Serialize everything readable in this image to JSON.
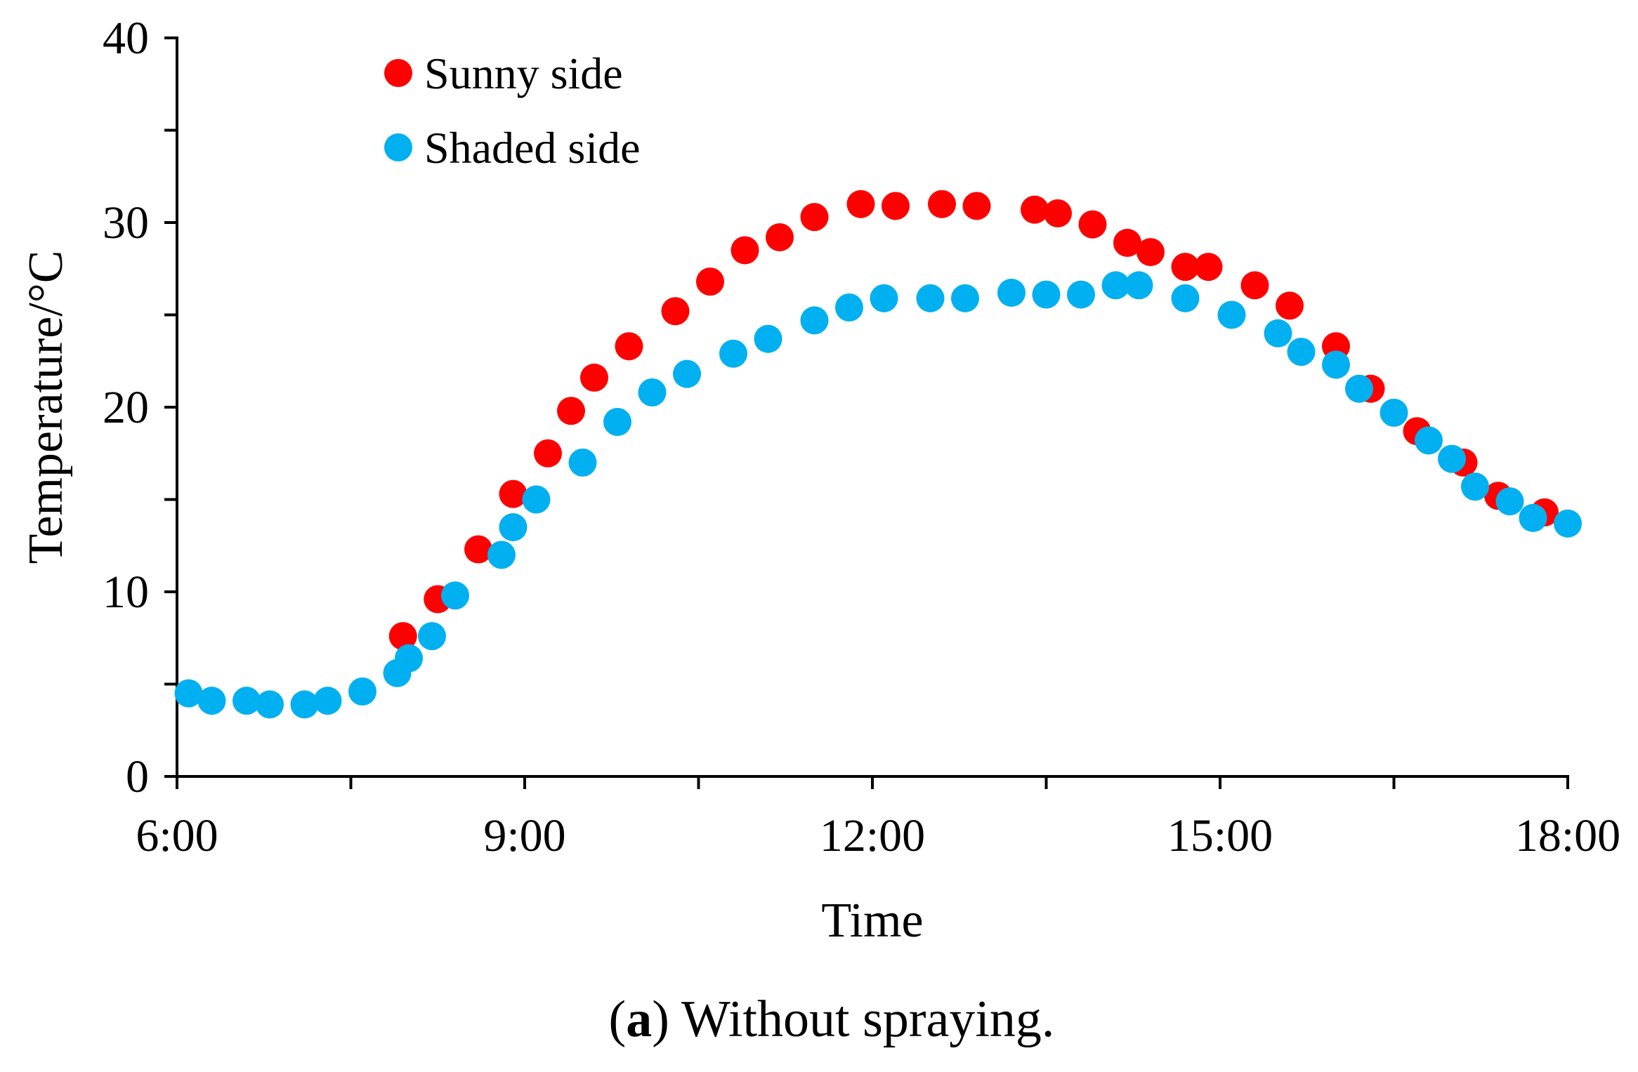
{
  "chart_data": {
    "type": "scatter",
    "title": "",
    "xlabel": "Time",
    "ylabel": "Temperature/°C",
    "caption": {
      "letter": "a",
      "open": "(",
      "close": ")",
      "text": " Without spraying."
    },
    "xlim": [
      6,
      18
    ],
    "ylim": [
      0,
      40
    ],
    "x_ticks": [
      6,
      9,
      12,
      15,
      18
    ],
    "x_tick_labels": [
      "6:00",
      "9:00",
      "12:00",
      "15:00",
      "18:00"
    ],
    "x_minor_ticks": [
      7.5,
      10.5,
      13.5,
      16.5
    ],
    "y_ticks": [
      0,
      10,
      20,
      30,
      40
    ],
    "y_tick_labels": [
      "0",
      "10",
      "20",
      "30",
      "40"
    ],
    "y_minor_ticks": [
      5,
      15,
      25,
      35
    ],
    "grid": false,
    "legend_position": "top-left",
    "series": [
      {
        "name": "Sunny side",
        "color": "#ff0000",
        "x": [
          7.95,
          8.25,
          8.6,
          8.9,
          9.2,
          9.4,
          9.6,
          9.9,
          10.3,
          10.6,
          10.9,
          11.2,
          11.5,
          11.9,
          12.2,
          12.6,
          12.9,
          13.4,
          13.6,
          13.9,
          14.2,
          14.4,
          14.7,
          14.9,
          15.3,
          15.6,
          16.0,
          16.3,
          16.7,
          17.1,
          17.4,
          17.8
        ],
        "y": [
          7.6,
          9.6,
          12.3,
          15.3,
          17.5,
          19.8,
          21.6,
          23.3,
          25.2,
          26.8,
          28.5,
          29.2,
          30.3,
          31.0,
          30.9,
          31.0,
          30.9,
          30.7,
          30.5,
          29.9,
          28.9,
          28.4,
          27.6,
          27.6,
          26.6,
          25.5,
          23.3,
          21.0,
          18.7,
          17.0,
          15.2,
          14.3
        ]
      },
      {
        "name": "Shaded side",
        "color": "#00b0f0",
        "x": [
          6.1,
          6.3,
          6.6,
          6.8,
          7.1,
          7.3,
          7.6,
          7.9,
          8.0,
          8.2,
          8.4,
          8.8,
          8.9,
          9.1,
          9.5,
          9.8,
          10.1,
          10.4,
          10.8,
          11.1,
          11.5,
          11.8,
          12.1,
          12.5,
          12.8,
          13.2,
          13.5,
          13.8,
          14.1,
          14.3,
          14.7,
          15.1,
          15.5,
          15.7,
          16.0,
          16.2,
          16.5,
          16.8,
          17.0,
          17.2,
          17.5,
          17.7,
          18.0
        ],
        "y": [
          4.5,
          4.1,
          4.1,
          3.9,
          3.9,
          4.1,
          4.6,
          5.6,
          6.4,
          7.6,
          9.8,
          12.0,
          13.5,
          15.0,
          17.0,
          19.2,
          20.8,
          21.8,
          22.9,
          23.7,
          24.7,
          25.4,
          25.9,
          25.9,
          25.9,
          26.2,
          26.1,
          26.1,
          26.6,
          26.6,
          25.9,
          25.0,
          24.0,
          23.0,
          22.3,
          21.0,
          19.7,
          18.2,
          17.2,
          15.7,
          14.9,
          14.0,
          13.7
        ]
      }
    ]
  }
}
